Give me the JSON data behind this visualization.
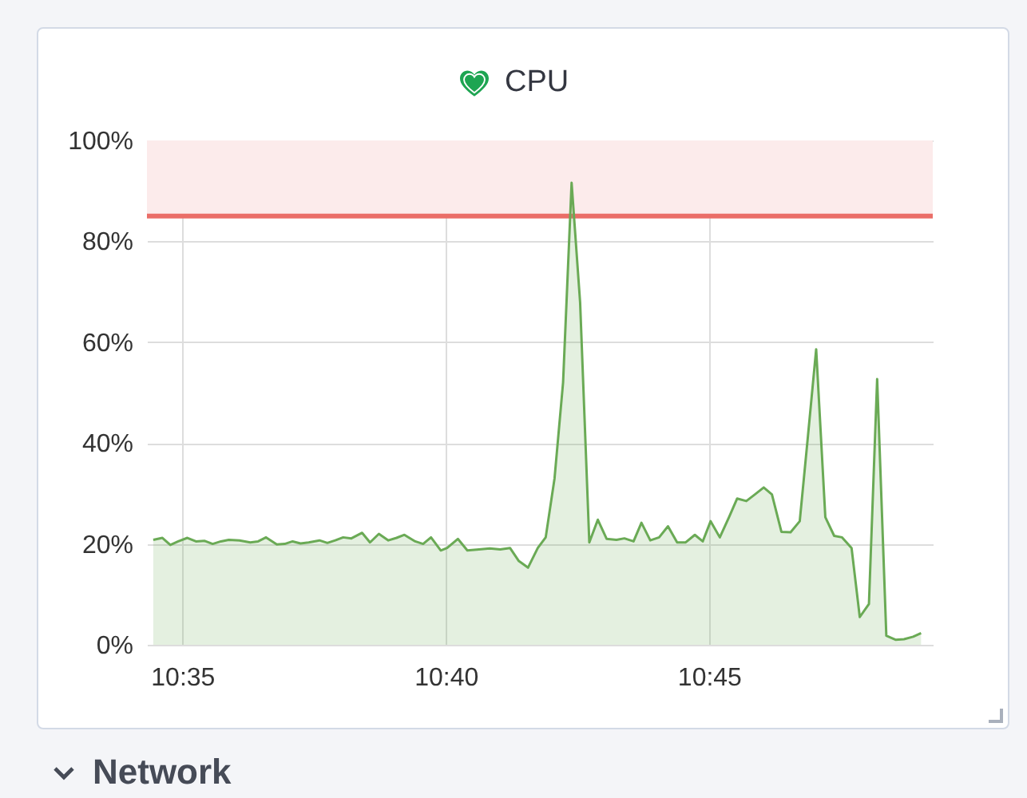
{
  "chart_data": {
    "type": "area",
    "title": "CPU",
    "x": [
      10.5741,
      10.577,
      10.5795,
      10.582,
      10.5849,
      10.5876,
      10.5904,
      10.5929,
      10.5955,
      10.598,
      10.6014,
      10.6048,
      10.6073,
      10.6098,
      10.6132,
      10.6157,
      10.6182,
      10.6207,
      10.6233,
      10.6267,
      10.6292,
      10.6317,
      10.6342,
      10.6368,
      10.6402,
      10.6427,
      10.6455,
      10.6485,
      10.6511,
      10.6536,
      10.657,
      10.6595,
      10.662,
      10.6651,
      10.6671,
      10.6705,
      10.6735,
      10.6772,
      10.6806,
      10.6839,
      10.687,
      10.6898,
      10.6927,
      10.6958,
      10.6983,
      10.7011,
      10.7038,
      10.7065,
      10.7092,
      10.7121,
      10.7148,
      10.7176,
      10.7207,
      10.7232,
      10.7261,
      10.7286,
      10.7314,
      10.7342,
      10.737,
      10.7399,
      10.7426,
      10.7455,
      10.748,
      10.7505,
      10.7534,
      10.7564,
      10.7589,
      10.7618,
      10.7645,
      10.7673,
      10.7699,
      10.7729,
      10.7758,
      10.7787,
      10.7813,
      10.7839,
      10.7868,
      10.7896,
      10.7921,
      10.7951,
      10.7977,
      10.8006,
      10.8032,
      10.8061,
      10.809,
      10.8117,
      10.8146,
      10.8171
    ],
    "series": [
      {
        "color": "#6aaa55",
        "values": [
          20.8,
          21.2,
          19.8,
          20.5,
          21.2,
          20.5,
          20.6,
          20.0,
          20.5,
          20.8,
          20.7,
          20.3,
          20.5,
          21.3,
          19.9,
          20.0,
          20.5,
          20.1,
          20.3,
          20.7,
          20.2,
          20.7,
          21.3,
          21.1,
          22.2,
          20.3,
          22.0,
          20.7,
          21.2,
          21.8,
          20.5,
          20.0,
          21.3,
          18.7,
          19.2,
          21.0,
          18.7,
          18.9,
          19.1,
          18.9,
          19.2,
          16.6,
          15.3,
          19.2,
          21.3,
          33.0,
          52.0,
          91.6,
          67.8,
          20.3,
          24.8,
          21.0,
          20.8,
          21.1,
          20.5,
          24.2,
          20.7,
          21.3,
          23.5,
          20.3,
          20.3,
          21.8,
          20.5,
          24.5,
          21.3,
          25.4,
          29.0,
          28.5,
          29.8,
          31.2,
          29.8,
          22.4,
          22.3,
          24.5,
          41.4,
          58.6,
          25.3,
          21.6,
          21.3,
          19.2,
          5.5,
          8.1,
          52.7,
          1.8,
          1.0,
          1.1,
          1.6,
          2.3
        ]
      }
    ],
    "xlim": [
      10.5721,
      10.8208
    ],
    "xticks": [
      {
        "value": 10.5833,
        "label": "10:35"
      },
      {
        "value": 10.6667,
        "label": "10:40"
      },
      {
        "value": 10.75,
        "label": "10:45"
      }
    ],
    "ylim": [
      0,
      100
    ],
    "yticks": [
      {
        "value": 0,
        "label": "0%"
      },
      {
        "value": 20,
        "label": "20%"
      },
      {
        "value": 40,
        "label": "40%"
      },
      {
        "value": 60,
        "label": "60%"
      },
      {
        "value": 80,
        "label": "80%"
      },
      {
        "value": 100,
        "label": "100%"
      }
    ],
    "grid": true,
    "ref_lines": [
      {
        "axis": "y",
        "value": 85,
        "color": "#ea6e68"
      }
    ],
    "bands": [
      {
        "axis": "y",
        "from": 85,
        "to": 100,
        "color": "#fcebeb"
      }
    ],
    "annotations": [
      "Network"
    ]
  }
}
